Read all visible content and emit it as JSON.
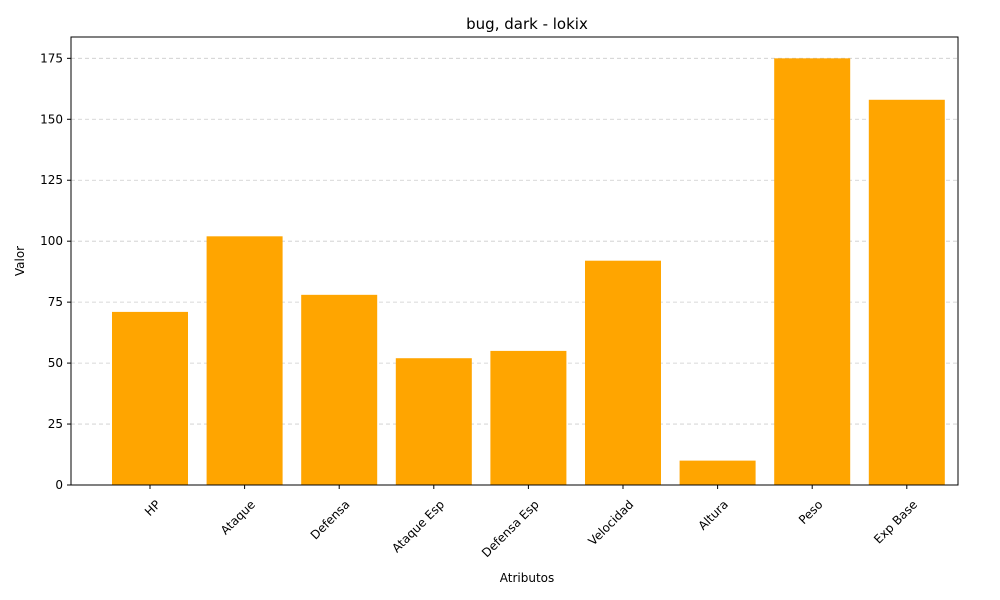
{
  "chart_data": {
    "type": "bar",
    "title": "bug, dark - lokix",
    "xlabel": "Atributos",
    "ylabel": "Valor",
    "categories": [
      "HP",
      "Ataque",
      "Defensa",
      "Ataque Esp",
      "Defensa Esp",
      "Velocidad",
      "Altura",
      "Peso",
      "Exp Base"
    ],
    "values": [
      71,
      102,
      78,
      52,
      55,
      92,
      10,
      175,
      158
    ],
    "ylim": [
      0,
      183.75
    ],
    "yticks": [
      0,
      25,
      50,
      75,
      100,
      125,
      150,
      175
    ],
    "bar_color": "#FFA500",
    "grid": "y-dashed",
    "legend": "none"
  }
}
